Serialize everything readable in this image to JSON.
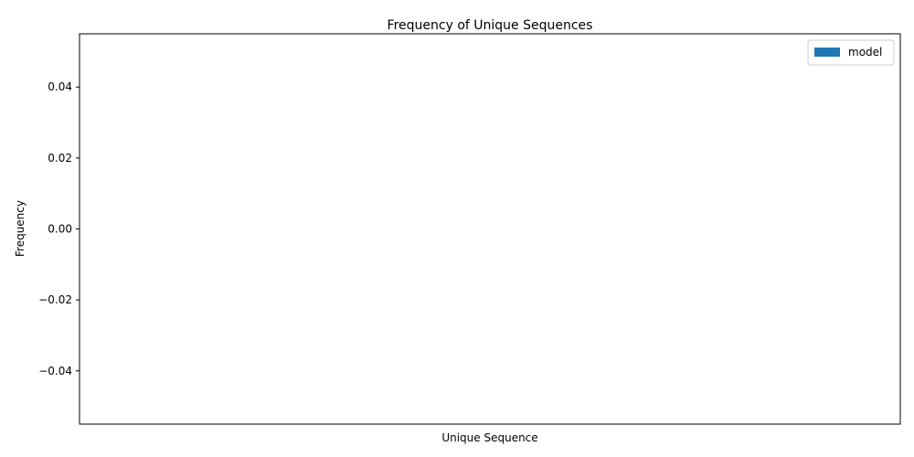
{
  "chart_data": {
    "type": "bar",
    "title": "Frequency of Unique Sequences",
    "xlabel": "Unique Sequence",
    "ylabel": "Frequency",
    "categories": [],
    "series": [
      {
        "name": "model",
        "values": [],
        "color": "#1f77b4"
      }
    ],
    "ylim": [
      -0.055,
      0.055
    ],
    "yticks": [
      -0.04,
      -0.02,
      0.0,
      0.02,
      0.04
    ],
    "ytick_labels": [
      "−0.04",
      "−0.02",
      "0.00",
      "0.02",
      "0.04"
    ],
    "grid": false,
    "legend_position": "upper-right"
  }
}
